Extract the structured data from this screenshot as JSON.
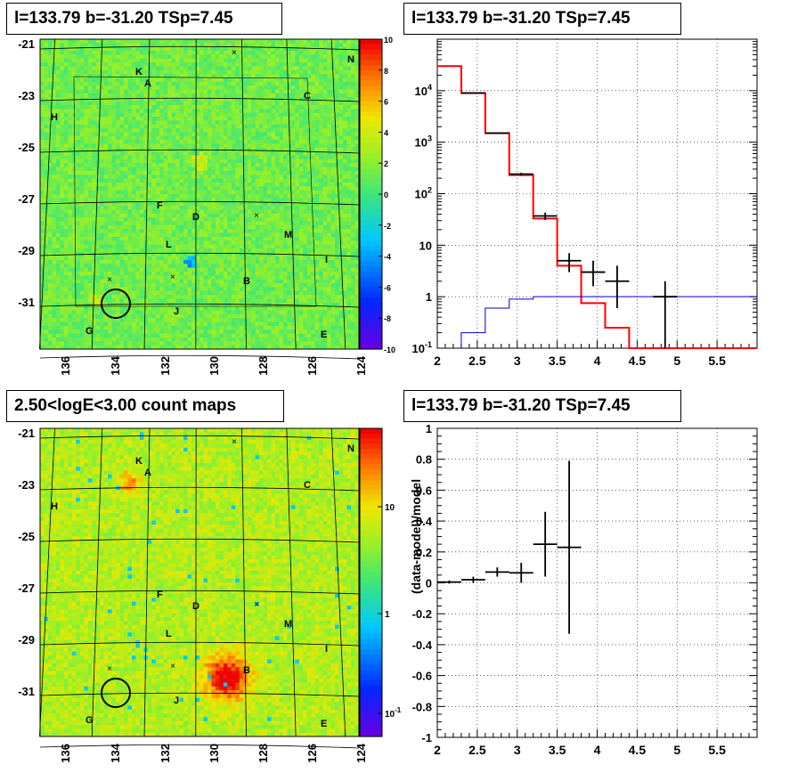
{
  "chart_data": [
    {
      "type": "heatmap",
      "title": "l=133.79 b=-31.20 TSp=7.45",
      "x_tick_labels": [
        "136",
        "134",
        "132",
        "130",
        "128",
        "126",
        "124"
      ],
      "y_tick_labels": [
        "-21",
        "-23",
        "-25",
        "-27",
        "-29",
        "-31"
      ],
      "colorbar_labels": [
        "10",
        "8",
        "6",
        "4",
        "2",
        "0",
        "-2",
        "-4",
        "-6",
        "-8",
        "-10"
      ],
      "source_labels": [
        "K",
        "A",
        "N",
        "C",
        "H",
        "F",
        "D",
        "M",
        "L",
        "I",
        "B",
        "J",
        "G",
        "E"
      ],
      "marker": "circle near l=133.8, b=-31.2"
    },
    {
      "type": "line",
      "title": "l=133.79 b=-31.20 TSp=7.45",
      "y_scale": "log",
      "xlim": [
        2.0,
        6.0
      ],
      "ylim_exponents": [
        -1,
        5
      ],
      "x_tick_labels": [
        "2",
        "2.5",
        "3",
        "3.5",
        "4",
        "4.5",
        "5",
        "5.5"
      ],
      "y_tick_labels": [
        {
          "base": "10",
          "exp": "4"
        },
        {
          "base": "10",
          "exp": "3"
        },
        {
          "base": "10",
          "exp": "2"
        },
        {
          "base": "10",
          "exp": ""
        },
        {
          "base": "1",
          "exp": ""
        },
        {
          "base": "10",
          "exp": "-1"
        }
      ],
      "red_model_steps": [
        {
          "x0": 2.0,
          "x1": 2.3,
          "y": 30000
        },
        {
          "x0": 2.3,
          "x1": 2.6,
          "y": 9000
        },
        {
          "x0": 2.6,
          "x1": 2.9,
          "y": 1500
        },
        {
          "x0": 2.9,
          "x1": 3.2,
          "y": 230
        },
        {
          "x0": 3.2,
          "x1": 3.5,
          "y": 33
        },
        {
          "x0": 3.5,
          "x1": 3.8,
          "y": 4
        },
        {
          "x0": 3.8,
          "x1": 4.1,
          "y": 0.75
        },
        {
          "x0": 4.1,
          "x1": 4.4,
          "y": 0.25
        },
        {
          "x0": 4.4,
          "x1": 6.0,
          "y": 0.1
        }
      ],
      "blue_model_steps": [
        {
          "x0": 2.3,
          "x1": 2.6,
          "y": 0.2
        },
        {
          "x0": 2.6,
          "x1": 2.9,
          "y": 0.6
        },
        {
          "x0": 2.9,
          "x1": 3.2,
          "y": 0.9
        },
        {
          "x0": 3.2,
          "x1": 6.0,
          "y": 1.0
        }
      ],
      "data_points": [
        {
          "x": 2.45,
          "xerr": 0.15,
          "y": 9000,
          "ylo": 8800,
          "yhi": 9200
        },
        {
          "x": 2.75,
          "xerr": 0.15,
          "y": 1500,
          "ylo": 1450,
          "yhi": 1550
        },
        {
          "x": 3.05,
          "xerr": 0.15,
          "y": 240,
          "ylo": 225,
          "yhi": 255
        },
        {
          "x": 3.35,
          "xerr": 0.15,
          "y": 37,
          "ylo": 31,
          "yhi": 43
        },
        {
          "x": 3.65,
          "xerr": 0.15,
          "y": 5,
          "ylo": 3,
          "yhi": 7
        },
        {
          "x": 3.95,
          "xerr": 0.15,
          "y": 3,
          "ylo": 1.6,
          "yhi": 5
        },
        {
          "x": 4.25,
          "xerr": 0.15,
          "y": 2,
          "ylo": 0.6,
          "yhi": 4
        },
        {
          "x": 4.85,
          "xerr": 0.15,
          "y": 1,
          "ylo": 0.1,
          "yhi": 2
        }
      ]
    },
    {
      "type": "heatmap",
      "title": "2.50<logE<3.00 count maps",
      "x_tick_labels": [
        "136",
        "134",
        "132",
        "130",
        "128",
        "126",
        "124"
      ],
      "y_tick_labels": [
        "-21",
        "-23",
        "-25",
        "-27",
        "-29",
        "-31"
      ],
      "colorbar_labels": [
        {
          "base": "10",
          "exp": ""
        },
        {
          "base": "1",
          "exp": ""
        },
        {
          "base": "10",
          "exp": "-1"
        }
      ],
      "source_labels": [
        "K",
        "A",
        "N",
        "C",
        "H",
        "F",
        "D",
        "M",
        "L",
        "I",
        "B",
        "J",
        "G",
        "E"
      ]
    },
    {
      "type": "scatter",
      "title": "l=133.79 b=-31.20 TSp=7.45",
      "ylabel": "(data-model)/model",
      "xlim": [
        2.0,
        6.0
      ],
      "ylim": [
        -1,
        1
      ],
      "x_tick_labels": [
        "2",
        "2.5",
        "3",
        "3.5",
        "4",
        "4.5",
        "5",
        "5.5"
      ],
      "y_tick_labels": [
        "1",
        "0.8",
        "0.6",
        "0.4",
        "0.2",
        "0",
        "-0.2",
        "-0.4",
        "-0.6",
        "-0.8",
        "-1"
      ],
      "points": [
        {
          "x": 2.15,
          "xerr": 0.15,
          "y": 0.005,
          "ylo": -0.005,
          "yhi": 0.015
        },
        {
          "x": 2.45,
          "xerr": 0.15,
          "y": 0.02,
          "ylo": 0.0,
          "yhi": 0.04
        },
        {
          "x": 2.75,
          "xerr": 0.15,
          "y": 0.07,
          "ylo": 0.04,
          "yhi": 0.1
        },
        {
          "x": 3.05,
          "xerr": 0.15,
          "y": 0.065,
          "ylo": 0.0,
          "yhi": 0.13
        },
        {
          "x": 3.35,
          "xerr": 0.15,
          "y": 0.25,
          "ylo": 0.04,
          "yhi": 0.46
        },
        {
          "x": 3.65,
          "xerr": 0.15,
          "y": 0.23,
          "ylo": -0.33,
          "yhi": 0.79
        }
      ]
    }
  ]
}
